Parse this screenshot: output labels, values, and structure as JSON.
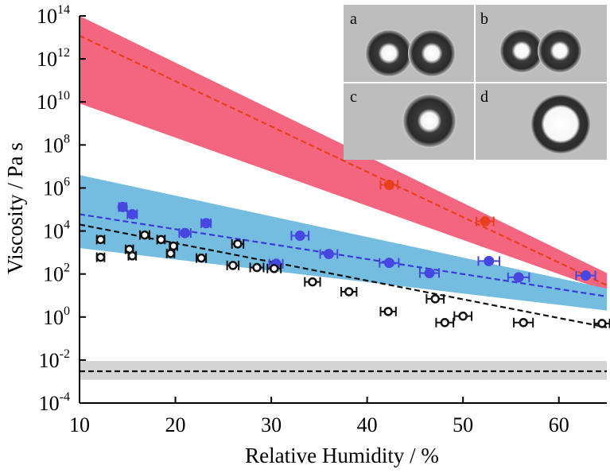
{
  "chart_data": {
    "type": "scatter",
    "xlabel": "Relative Humidity / %",
    "ylabel": "Viscosity / Pa s",
    "xlim": [
      10,
      65
    ],
    "xticks": [
      10,
      20,
      30,
      40,
      50,
      60
    ],
    "ylim": [
      0.0001,
      100000000000000
    ],
    "yscale": "log",
    "yticks": [
      {
        "value": 0.0001,
        "label": "10^-4"
      },
      {
        "value": 0.01,
        "label": "10^-2"
      },
      {
        "value": 1,
        "label": "10^0"
      },
      {
        "value": 100,
        "label": "10^2"
      },
      {
        "value": 10000,
        "label": "10^4"
      },
      {
        "value": 1000000,
        "label": "10^6"
      },
      {
        "value": 100000000,
        "label": "10^8"
      },
      {
        "value": 10000000000,
        "label": "10^10"
      },
      {
        "value": 1000000000000,
        "label": "10^12"
      },
      {
        "value": 100000000000000,
        "label": "10^14"
      }
    ],
    "bands": [
      {
        "color": "#f4657f",
        "x": [
          10,
          65
        ],
        "lower": [
          8500000000,
          16
        ],
        "upper": [
          100000000000000,
          110
        ]
      },
      {
        "color": "#74bde0",
        "x": [
          10,
          65
        ],
        "lower": [
          1600,
          2
        ],
        "upper": [
          4000000,
          21
        ]
      },
      {
        "color": "#d4d4d4",
        "x": [
          10,
          65
        ],
        "lower": [
          0.0012,
          0.0012
        ],
        "upper": [
          0.009,
          0.009
        ]
      }
    ],
    "lines": [
      {
        "color": "#e8401c",
        "x": [
          10,
          65
        ],
        "values": [
          12000000000000,
          30
        ]
      },
      {
        "color": "#3a3ad8",
        "x": [
          10,
          65
        ],
        "values": [
          60000,
          9
        ]
      },
      {
        "color": "#111111",
        "x": [
          10,
          65
        ],
        "values": [
          20000,
          0.33
        ]
      },
      {
        "color": "#111111",
        "x": [
          10,
          65
        ],
        "values": [
          0.003,
          0.003
        ]
      }
    ],
    "series": [
      {
        "color": "#e8401c",
        "marker": "filled",
        "x": [
          42.3,
          52.3
        ],
        "values": [
          1400000,
          28000
        ],
        "xerr": [
          0.9,
          0.9
        ]
      },
      {
        "color": "#4646e0",
        "marker": "filled",
        "x": [
          14.5,
          15.5,
          21,
          23.2,
          33,
          30.5,
          36,
          42.3,
          46.5,
          52.7,
          55.8,
          62.8
        ],
        "values": [
          130000,
          60000,
          8000,
          23000,
          6000,
          300,
          850,
          330,
          110,
          400,
          70,
          85
        ],
        "xerr": [
          0.4,
          0.5,
          0.6,
          0.5,
          0.9,
          0.7,
          0.9,
          1,
          1,
          1.1,
          1.1,
          1
        ]
      },
      {
        "color": "#111111",
        "marker": "open",
        "x": [
          12.2,
          12.2,
          15.2,
          15.5,
          16.8,
          18.5,
          19.8,
          19.5,
          22.7,
          26.5,
          26,
          28.5,
          30.3,
          34.3,
          38.1,
          42.2,
          47.1,
          48.1,
          50,
          56.3,
          64.5
        ],
        "values": [
          4000,
          600,
          1400,
          700,
          6500,
          4000,
          2000,
          900,
          550,
          2500,
          250,
          200,
          180,
          43,
          15,
          1.8,
          7,
          0.55,
          1.1,
          0.55,
          0.5
        ],
        "xerr": [
          0.4,
          0.4,
          0.4,
          0.4,
          0.5,
          0.4,
          0.4,
          0.4,
          0.5,
          0.6,
          0.6,
          0.7,
          0.7,
          0.8,
          0.8,
          0.8,
          0.9,
          0.9,
          0.9,
          1,
          0.8
        ]
      }
    ],
    "inset_labels": [
      "a",
      "b",
      "c",
      "d"
    ]
  }
}
